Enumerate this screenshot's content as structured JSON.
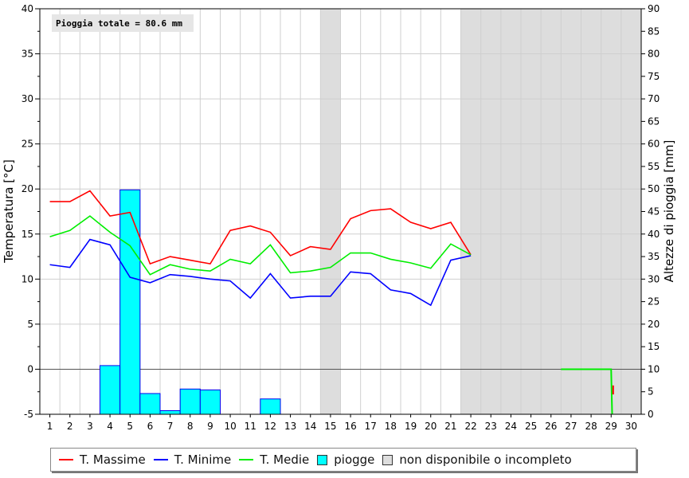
{
  "chart_data": {
    "type": "bar+line",
    "annotation": "Pioggia totale = 80.6 mm",
    "ylabel_left": "Temperatura [°C]",
    "ylabel_right": "Altezze di pioggia [mm]",
    "ylim_left": [
      -5,
      40
    ],
    "ylim_right": [
      0,
      90
    ],
    "xlim": [
      0.5,
      30.5
    ],
    "x_ticks": [
      1,
      2,
      3,
      4,
      5,
      6,
      7,
      8,
      9,
      10,
      11,
      12,
      13,
      14,
      15,
      16,
      17,
      18,
      19,
      20,
      21,
      22,
      23,
      24,
      25,
      26,
      27,
      28,
      29,
      30
    ],
    "left_ticks": [
      -5,
      0,
      5,
      10,
      15,
      20,
      25,
      30,
      35,
      40
    ],
    "right_ticks": [
      0,
      5,
      10,
      15,
      20,
      25,
      30,
      35,
      40,
      45,
      50,
      55,
      60,
      65,
      70,
      75,
      80,
      85,
      90
    ],
    "grid": true,
    "series": [
      {
        "name": "T. Massime",
        "color": "#ff0000",
        "x": [
          1,
          2,
          3,
          4,
          5,
          6,
          7,
          8,
          9,
          10,
          11,
          12,
          13,
          14,
          15,
          16,
          17,
          18,
          19,
          20,
          21,
          22
        ],
        "values": [
          18.6,
          18.6,
          19.8,
          17.0,
          17.4,
          11.7,
          12.5,
          12.1,
          11.7,
          15.4,
          15.9,
          15.2,
          12.6,
          13.6,
          13.3,
          16.7,
          17.6,
          17.8,
          16.3,
          15.6,
          16.3,
          12.7
        ]
      },
      {
        "name": "T. Minime",
        "color": "#0000ff",
        "x": [
          1,
          2,
          3,
          4,
          5,
          6,
          7,
          8,
          9,
          10,
          11,
          12,
          13,
          14,
          15,
          16,
          17,
          18,
          19,
          20,
          21,
          22
        ],
        "values": [
          11.6,
          11.3,
          14.4,
          13.8,
          10.2,
          9.6,
          10.5,
          10.3,
          10.0,
          9.8,
          7.9,
          10.6,
          7.9,
          8.1,
          8.1,
          10.8,
          10.6,
          8.8,
          8.4,
          7.1,
          12.1,
          12.6
        ]
      },
      {
        "name": "T. Medie",
        "color": "#00ee00",
        "x": [
          1,
          2,
          3,
          4,
          5,
          6,
          7,
          8,
          9,
          10,
          11,
          12,
          13,
          14,
          15,
          16,
          17,
          18,
          19,
          20,
          21,
          22
        ],
        "values": [
          14.7,
          15.4,
          17.0,
          15.2,
          13.7,
          10.5,
          11.6,
          11.1,
          10.9,
          12.2,
          11.7,
          13.8,
          10.7,
          10.9,
          11.3,
          12.9,
          12.9,
          12.2,
          11.8,
          11.2,
          13.9,
          12.7
        ]
      }
    ],
    "extra_segments": [
      {
        "color": "#00ee00",
        "x": [
          26.5,
          29,
          29.05
        ],
        "values": [
          0,
          0,
          -5
        ]
      },
      {
        "color": "#ff0000",
        "x": [
          29.1,
          29.1
        ],
        "values": [
          -1.8,
          -2.8
        ]
      }
    ],
    "rain": {
      "name": "piogge",
      "color": "#00ffff",
      "days": [
        4,
        5,
        6,
        7,
        8,
        9,
        12
      ],
      "values": [
        10.8,
        49.8,
        4.6,
        0.8,
        5.6,
        5.4,
        3.4
      ]
    },
    "unavailable": {
      "name": "non disponibile o incompleto",
      "color": "#dddddd",
      "ranges": [
        [
          14.5,
          15.5
        ],
        [
          21.5,
          30.5
        ]
      ]
    },
    "legend_position": "bottom"
  }
}
